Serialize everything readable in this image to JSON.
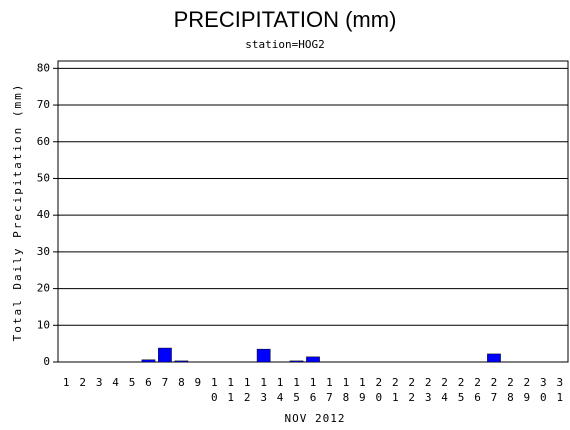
{
  "chart_data": {
    "type": "bar",
    "title": "PRECIPITATION (mm)",
    "subtitle": "station=HOG2",
    "x_label": "NOV 2012",
    "y_label": "Total Daily Precipitation (mm)",
    "categories": [
      "1",
      "2",
      "3",
      "4",
      "5",
      "6",
      "7",
      "8",
      "9",
      "10",
      "11",
      "12",
      "13",
      "14",
      "15",
      "16",
      "17",
      "18",
      "19",
      "20",
      "21",
      "22",
      "23",
      "24",
      "25",
      "26",
      "27",
      "28",
      "29",
      "30",
      "31"
    ],
    "values": [
      0,
      0,
      0,
      0,
      0,
      0.6,
      3.8,
      0.3,
      0,
      0,
      0,
      0,
      3.5,
      0,
      0.3,
      1.4,
      0,
      0,
      0,
      0,
      0,
      0,
      0,
      0,
      0,
      0,
      2.2,
      0,
      0,
      0,
      0
    ],
    "color": "#0000ff",
    "ylim": [
      0,
      82
    ],
    "yticks": [
      0,
      10,
      20,
      30,
      40,
      50,
      60,
      70,
      80
    ],
    "grid": true
  }
}
